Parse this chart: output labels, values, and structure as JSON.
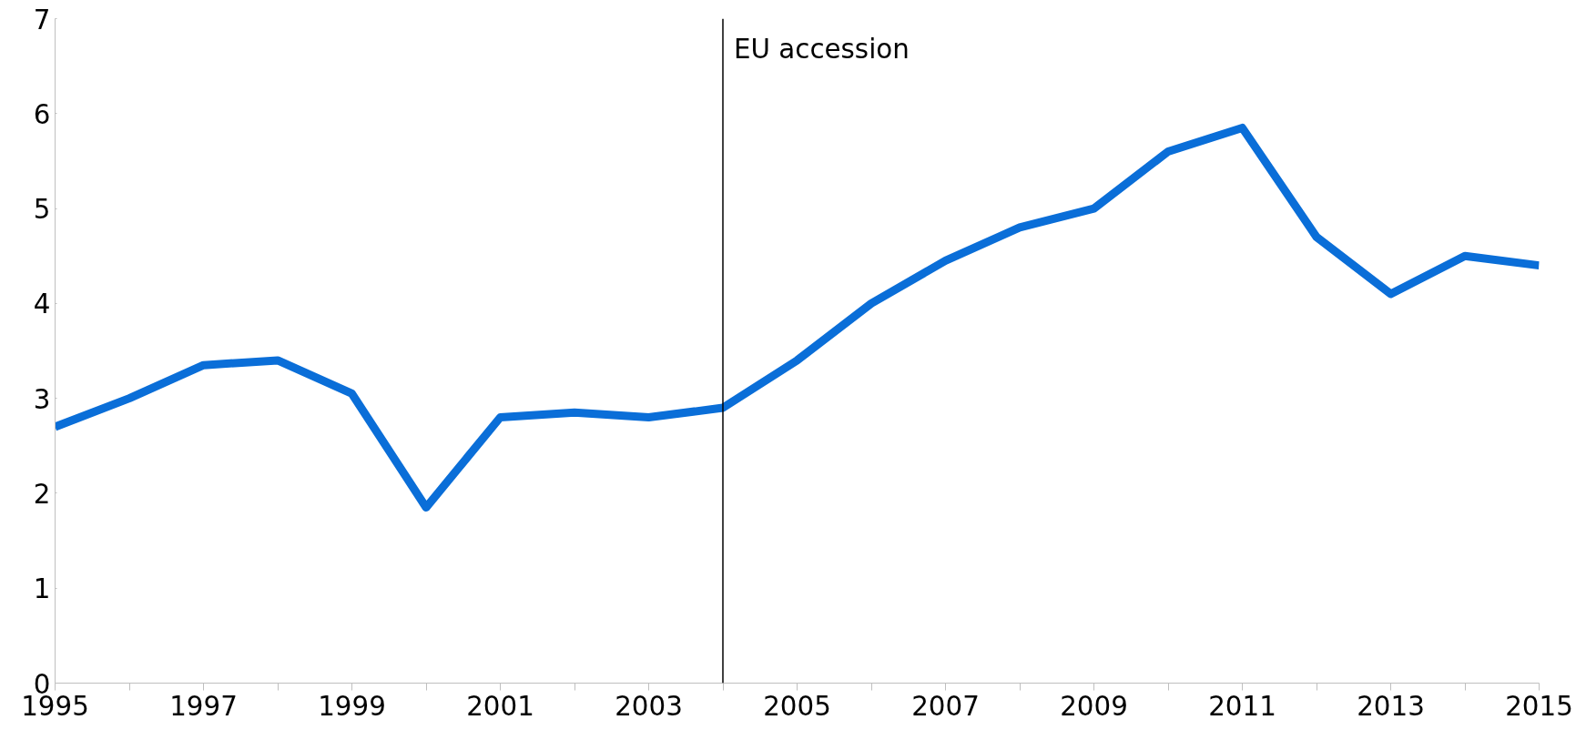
{
  "chart_data": {
    "type": "line",
    "x": [
      1995,
      1996,
      1997,
      1998,
      1999,
      2000,
      2001,
      2002,
      2003,
      2004,
      2005,
      2006,
      2007,
      2008,
      2009,
      2010,
      2011,
      2012,
      2013,
      2014,
      2015
    ],
    "series": [
      {
        "color": "#0a6ed8",
        "values": [
          2.7,
          3.0,
          3.35,
          3.4,
          3.05,
          1.85,
          2.8,
          2.85,
          2.8,
          2.9,
          3.4,
          4.0,
          4.45,
          4.8,
          5.0,
          5.6,
          5.85,
          4.7,
          4.1,
          4.5,
          4.4
        ]
      }
    ],
    "xlim": [
      1995,
      2015
    ],
    "xticks": [
      1995,
      {
        "value": 1996,
        "label": null
      },
      1997,
      {
        "value": 1998,
        "label": null
      },
      1999,
      {
        "value": 2000,
        "label": null
      },
      2001,
      {
        "value": 2002,
        "label": null
      },
      2003,
      {
        "value": 2004,
        "label": null
      },
      2005,
      {
        "value": 2006,
        "label": null
      },
      2007,
      {
        "value": 2008,
        "label": null
      },
      2009,
      {
        "value": 2010,
        "label": null
      },
      2011,
      {
        "value": 2012,
        "label": null
      },
      2013,
      {
        "value": 2014,
        "label": null
      },
      2015
    ],
    "ylim": [
      0,
      7
    ],
    "yticks": [
      0,
      1,
      2,
      3,
      4,
      5,
      6,
      7
    ],
    "ref_lines": [
      {
        "axis": "x",
        "value": 2004,
        "label": "EU accession",
        "color": "#000000"
      }
    ],
    "grid": false,
    "marker": "none",
    "line_style": "solid"
  }
}
